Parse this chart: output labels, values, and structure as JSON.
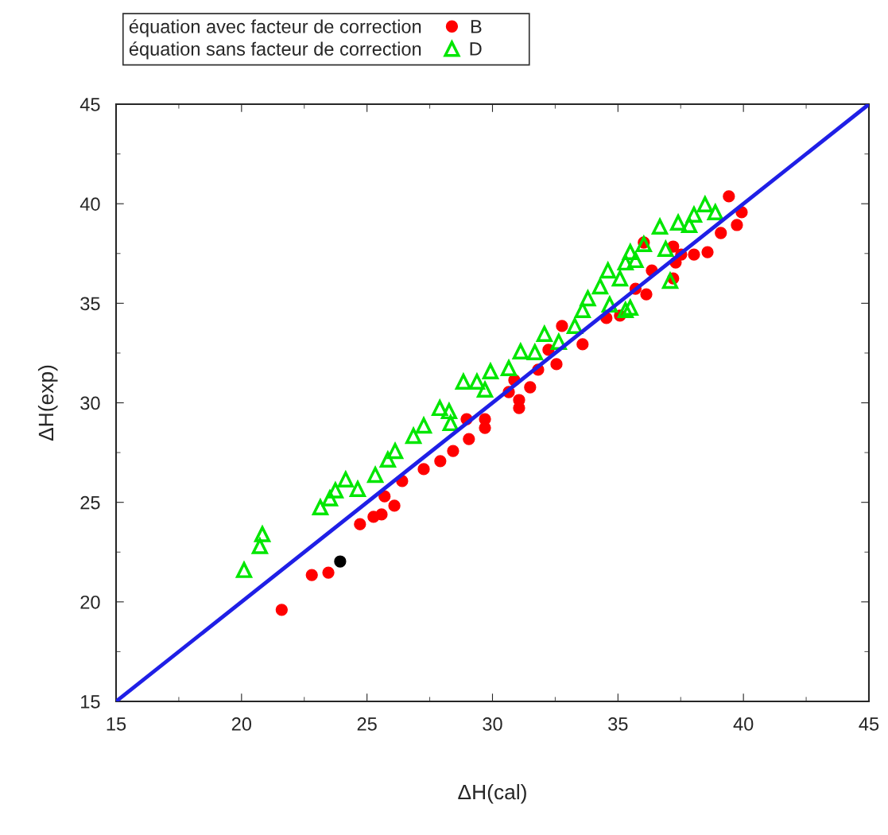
{
  "chart_data": {
    "type": "scatter",
    "xlabel": "ΔH(cal)",
    "ylabel": "ΔH(exp)",
    "xlim": [
      15,
      45
    ],
    "ylim": [
      15,
      45
    ],
    "xticks": [
      15,
      20,
      25,
      30,
      35,
      40,
      45
    ],
    "yticks": [
      15,
      20,
      25,
      30,
      35,
      40,
      45
    ],
    "grid": false,
    "legend": "top left",
    "annotations": [
      "B",
      "D"
    ],
    "series": [
      {
        "name": "équation avec facteur de correction",
        "color": "#ff0000",
        "marker": "circle",
        "x": [
          21.6,
          22.8,
          23.46,
          24.72,
          25.26,
          25.58,
          26.09,
          25.7,
          26.4,
          27.26,
          27.92,
          28.43,
          29.06,
          28.97,
          29.7,
          29.7,
          31.06,
          31.06,
          30.65,
          31.5,
          30.87,
          32.23,
          32.55,
          33.59,
          31.82,
          32.77,
          34.54,
          35.08,
          36.13,
          37.2,
          37.3,
          37.2,
          36.03,
          38.03,
          38.57,
          39.1,
          39.74,
          39.93,
          39.42,
          35.7,
          36.35,
          37.52
        ],
        "values": [
          19.6,
          21.35,
          21.47,
          23.9,
          24.27,
          24.39,
          24.83,
          25.3,
          26.07,
          26.67,
          27.07,
          27.58,
          28.18,
          29.18,
          29.18,
          28.74,
          29.74,
          30.14,
          30.54,
          30.78,
          31.14,
          32.66,
          31.94,
          32.94,
          31.66,
          33.86,
          34.26,
          34.38,
          35.45,
          36.25,
          37.05,
          37.85,
          38.05,
          37.45,
          37.57,
          38.53,
          38.93,
          39.57,
          40.37,
          35.73,
          36.65,
          37.45
        ]
      },
      {
        "name": "équation sans facteur de correction",
        "color": "#00e600",
        "marker": "triangle",
        "x": [
          20.1,
          20.73,
          20.83,
          23.14,
          23.52,
          23.74,
          24.15,
          24.63,
          25.33,
          25.83,
          26.12,
          26.85,
          27.26,
          27.9,
          28.27,
          28.33,
          28.84,
          29.38,
          29.92,
          29.7,
          30.65,
          31.12,
          31.69,
          32.07,
          32.64,
          33.28,
          33.59,
          34.67,
          35.49,
          33.8,
          34.29,
          34.6,
          35.3,
          35.49,
          36.03,
          36.67,
          37.4,
          38.03,
          38.47,
          38.88,
          37.84,
          36.9,
          37.08,
          35.08,
          35.7,
          35.3
        ],
        "values": [
          21.6,
          22.8,
          23.4,
          24.75,
          25.2,
          25.6,
          26.15,
          25.67,
          26.38,
          27.15,
          27.58,
          28.34,
          28.86,
          29.74,
          29.58,
          28.98,
          31.06,
          31.06,
          31.58,
          30.66,
          31.74,
          32.58,
          32.54,
          33.46,
          33.06,
          33.86,
          34.66,
          34.94,
          34.78,
          35.25,
          35.85,
          36.65,
          37.05,
          37.57,
          37.97,
          38.85,
          39.05,
          39.45,
          39.97,
          39.57,
          38.93,
          37.73,
          36.13,
          36.25,
          37.17,
          34.66
        ]
      },
      {
        "color": "#000000",
        "marker": "circle",
        "x": [
          23.93
        ],
        "values": [
          22.03
        ]
      },
      {
        "type": "line",
        "color": "#1f1fe6",
        "marker": "none",
        "line_style": "solid",
        "x": [
          15,
          45
        ],
        "values": [
          15,
          45
        ]
      }
    ]
  }
}
